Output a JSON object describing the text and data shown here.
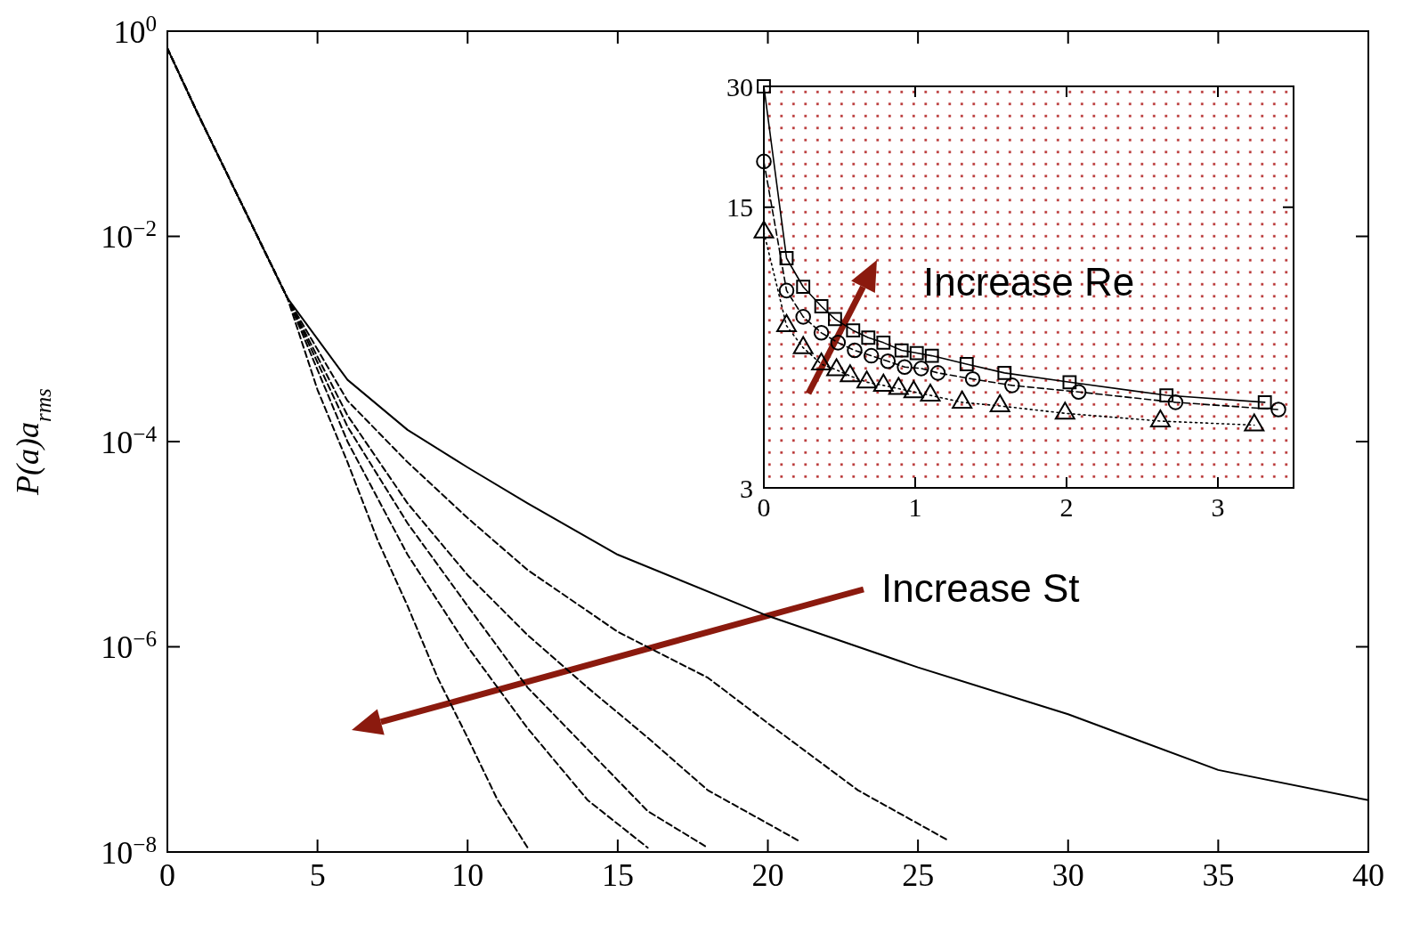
{
  "chart_data": [
    {
      "type": "line",
      "ylabel": "P(a)a$_{rms}$",
      "log": true,
      "xlim": [
        0,
        40
      ],
      "xticks": [
        0,
        5,
        10,
        15,
        20,
        25,
        30,
        35,
        40
      ],
      "ylim": [
        1e-08,
        1
      ],
      "yticks": [
        {
          "value": 1,
          "label": "10$^{0}$"
        },
        {
          "value": 0.01,
          "label": "10$^{−2}$"
        },
        {
          "value": 0.0001,
          "label": "10$^{−4}$"
        },
        {
          "value": 1e-06,
          "label": "10$^{−6}$"
        },
        {
          "value": 1e-08,
          "label": "10$^{−8}$"
        }
      ],
      "annotations": [
        "Increase St"
      ],
      "series": [
        {
          "color": "#000000",
          "line_style": "solid",
          "x": [
            0,
            1,
            2,
            3,
            4,
            6,
            8,
            10,
            12,
            15,
            20,
            25,
            30,
            35,
            40
          ],
          "values": [
            0.68,
            0.16,
            0.04,
            0.01,
            0.0025,
            0.0004,
            0.00013,
            5.6e-05,
            2.5e-05,
            7.9e-06,
            2e-06,
            6.3e-07,
            2.2e-07,
            6.3e-08,
            3.2e-08
          ]
        },
        {
          "color": "#000000",
          "line_style": "dashed",
          "x": [
            0,
            1,
            2,
            3,
            4,
            6,
            8,
            10,
            12,
            15,
            18,
            20,
            23,
            26
          ],
          "values": [
            0.68,
            0.16,
            0.04,
            0.01,
            0.0025,
            0.00025,
            6.3e-05,
            1.8e-05,
            5.6e-06,
            1.4e-06,
            5e-07,
            1.8e-07,
            4e-08,
            1.3e-08
          ]
        },
        {
          "color": "#000000",
          "line_style": "dashed",
          "x": [
            0,
            1,
            2,
            3,
            4,
            6,
            8,
            10,
            12,
            14,
            16,
            18,
            21
          ],
          "values": [
            0.68,
            0.16,
            0.04,
            0.01,
            0.0025,
            0.00018,
            2.5e-05,
            5e-06,
            1.3e-06,
            4e-07,
            1.3e-07,
            4e-08,
            1.3e-08
          ]
        },
        {
          "color": "#000000",
          "line_style": "dashed",
          "x": [
            0,
            1,
            2,
            3,
            4,
            6,
            8,
            10,
            12,
            14,
            16,
            18
          ],
          "values": [
            0.68,
            0.16,
            0.04,
            0.01,
            0.0025,
            0.00014,
            1.6e-05,
            2.5e-06,
            4e-07,
            1e-07,
            2.5e-08,
            1.1e-08
          ]
        },
        {
          "color": "#000000",
          "line_style": "dashed",
          "x": [
            0,
            1,
            2,
            3,
            4,
            6,
            8,
            10,
            12,
            14,
            16
          ],
          "values": [
            0.68,
            0.16,
            0.04,
            0.01,
            0.0025,
            0.0001,
            7.9e-06,
            1e-06,
            1.6e-07,
            3.2e-08,
            1.1e-08
          ]
        },
        {
          "color": "#000000",
          "line_style": "dashed",
          "x": [
            0,
            1,
            2,
            3,
            4,
            5,
            6,
            7,
            8,
            9,
            10,
            11,
            12
          ],
          "values": [
            0.68,
            0.16,
            0.04,
            0.01,
            0.0025,
            0.00032,
            6.3e-05,
            1.1e-05,
            2.5e-06,
            5e-07,
            1.3e-07,
            3.2e-08,
            1.1e-08
          ]
        }
      ]
    },
    {
      "type": "line",
      "log": true,
      "xlim": [
        0,
        3.5
      ],
      "xticks": [
        0,
        1,
        2,
        3
      ],
      "ylim": [
        3,
        30
      ],
      "yticks": [
        3,
        15,
        30
      ],
      "annotations": [
        "Increase Re"
      ],
      "series": [
        {
          "color": "#000000",
          "line_style": "solid",
          "marker": "square",
          "x": [
            0,
            0.15,
            0.26,
            0.38,
            0.47,
            0.59,
            0.69,
            0.79,
            0.91,
            1.01,
            1.11,
            1.34,
            1.59,
            2.02,
            2.66,
            3.31
          ],
          "values": [
            30,
            11.2,
            9.5,
            8.5,
            7.9,
            7.4,
            7.1,
            6.9,
            6.6,
            6.5,
            6.4,
            6.1,
            5.8,
            5.5,
            5.1,
            4.9
          ]
        },
        {
          "color": "#000000",
          "line_style": "dashed",
          "marker": "circle",
          "x": [
            0,
            0.15,
            0.26,
            0.38,
            0.49,
            0.6,
            0.71,
            0.82,
            0.93,
            1.04,
            1.15,
            1.38,
            1.64,
            2.08,
            2.72,
            3.4
          ],
          "values": [
            19.5,
            9.3,
            8,
            7.3,
            6.9,
            6.6,
            6.4,
            6.2,
            6,
            5.95,
            5.8,
            5.6,
            5.4,
            5.2,
            4.9,
            4.7
          ]
        },
        {
          "color": "#000000",
          "line_style": "dotted",
          "marker": "triangle",
          "x": [
            0,
            0.15,
            0.26,
            0.38,
            0.48,
            0.57,
            0.68,
            0.79,
            0.89,
            0.99,
            1.1,
            1.31,
            1.56,
            1.99,
            2.62,
            3.24
          ],
          "values": [
            13,
            7.6,
            6.7,
            6.1,
            5.9,
            5.7,
            5.5,
            5.4,
            5.3,
            5.2,
            5.1,
            4.9,
            4.8,
            4.6,
            4.4,
            4.3
          ]
        }
      ]
    }
  ]
}
